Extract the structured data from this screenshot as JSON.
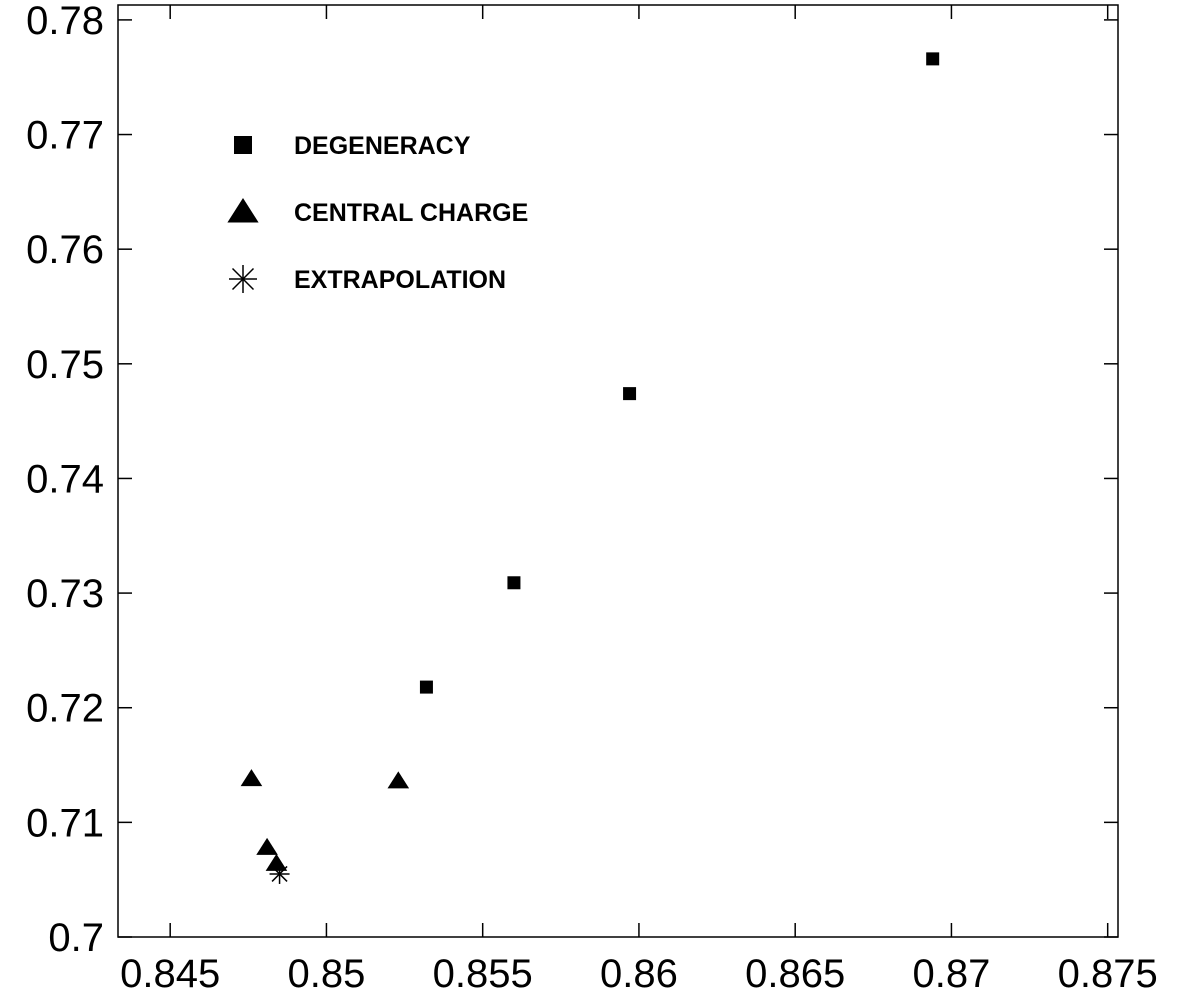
{
  "chart_data": {
    "type": "scatter",
    "title": "",
    "xlabel": "",
    "ylabel": "",
    "xlim": [
      0.84333,
      0.87533
    ],
    "ylim": [
      0.7,
      0.7813
    ],
    "x_ticks": [
      0.845,
      0.85,
      0.855,
      0.86,
      0.865,
      0.87,
      0.875
    ],
    "x_tick_labels": [
      "0.845",
      "0.85",
      "0.855",
      "0.86",
      "0.865",
      "0.87",
      "0.875"
    ],
    "y_ticks": [
      0.7,
      0.71,
      0.72,
      0.73,
      0.74,
      0.75,
      0.76,
      0.77,
      0.78
    ],
    "y_tick_labels": [
      "0.7",
      "0.71",
      "0.72",
      "0.73",
      "0.74",
      "0.75",
      "0.76",
      "0.77",
      "0.78"
    ],
    "grid": false,
    "legend": {
      "position": "top-left"
    },
    "series": [
      {
        "name": "DEGENERACY",
        "marker": "square",
        "color": "#000000",
        "points": [
          {
            "x": 0.8532,
            "y": 0.7218
          },
          {
            "x": 0.856,
            "y": 0.7309
          },
          {
            "x": 0.8597,
            "y": 0.7474
          },
          {
            "x": 0.8694,
            "y": 0.7766
          }
        ]
      },
      {
        "name": "CENTRAL CHARGE",
        "marker": "triangle",
        "color": "#000000",
        "points": [
          {
            "x": 0.8476,
            "y": 0.7138
          },
          {
            "x": 0.8481,
            "y": 0.7078
          },
          {
            "x": 0.8484,
            "y": 0.7064
          },
          {
            "x": 0.8523,
            "y": 0.7136
          }
        ]
      },
      {
        "name": "EXTRAPOLATION",
        "marker": "asterisk",
        "color": "#000000",
        "points": [
          {
            "x": 0.8485,
            "y": 0.7055
          }
        ]
      }
    ]
  }
}
